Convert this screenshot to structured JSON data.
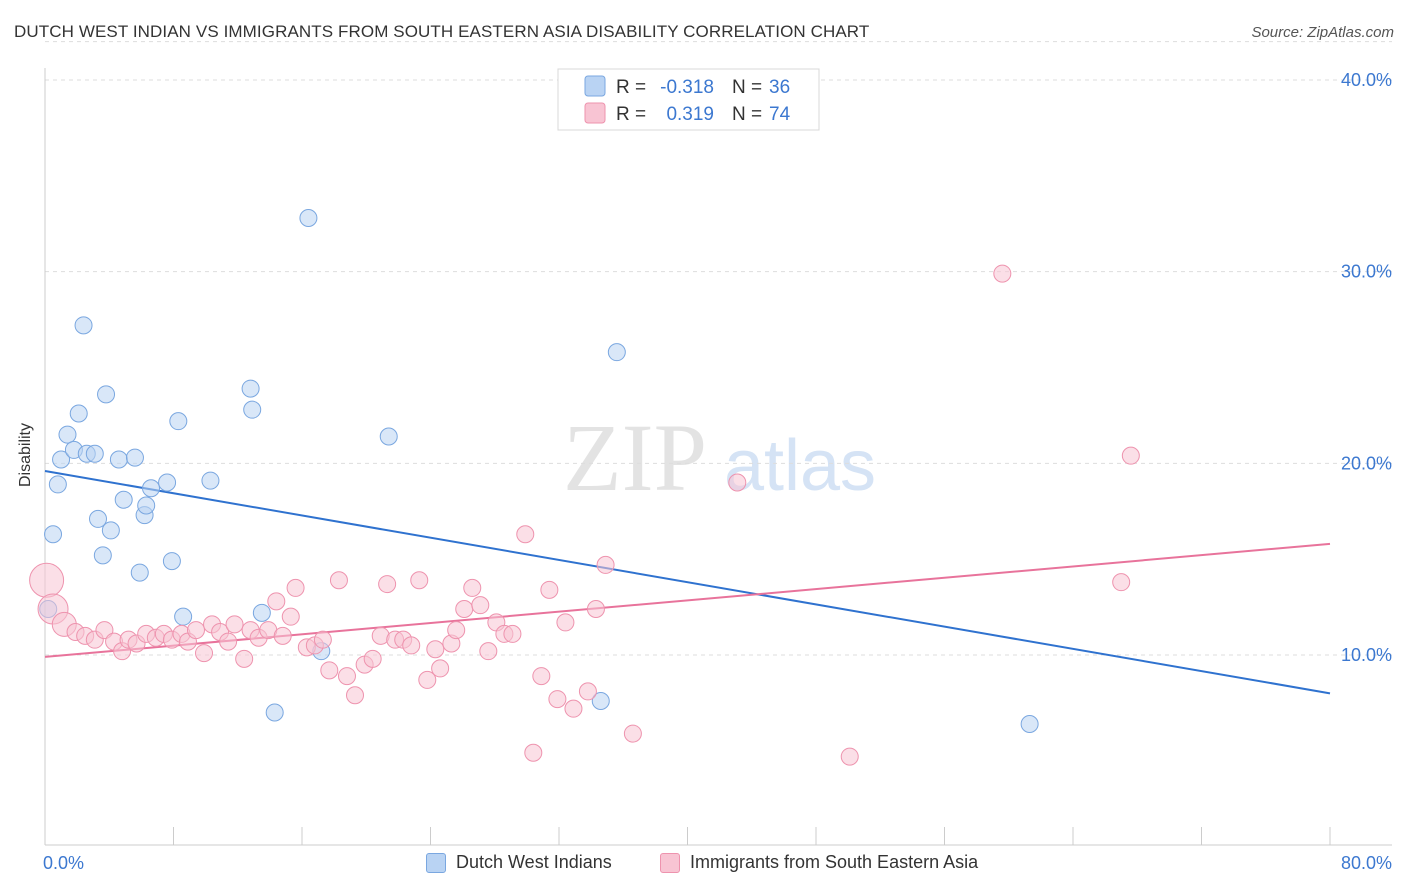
{
  "title": "DUTCH WEST INDIAN VS IMMIGRANTS FROM SOUTH EASTERN ASIA DISABILITY CORRELATION CHART",
  "source": "Source: ZipAtlas.com",
  "watermark": {
    "zip": "ZIP",
    "atlas": "atlas"
  },
  "legend_top": {
    "r_label": "R =",
    "n_label": "N =",
    "rows": [
      {
        "r": "-0.318",
        "n": "36"
      },
      {
        "r": "0.319",
        "n": "74"
      }
    ]
  },
  "colors": {
    "blue_fill": "#b9d3f3",
    "blue_stroke": "#7aa7e0",
    "blue_line": "#2f72cf",
    "pink_fill": "#f8c4d3",
    "pink_stroke": "#ee93ae",
    "pink_line": "#e8739b",
    "value_text": "#3c78d0",
    "grid": "#dddddd"
  },
  "chart_data": {
    "type": "scatter",
    "title": "DUTCH WEST INDIAN VS IMMIGRANTS FROM SOUTH EASTERN ASIA DISABILITY CORRELATION CHART",
    "xlabel": "",
    "ylabel": "Disability",
    "xlim": [
      0,
      80
    ],
    "ylim": [
      0,
      42
    ],
    "x_tick_labels": [
      "0.0%",
      "80.0%"
    ],
    "y_tick_labels": [
      "10.0%",
      "20.0%",
      "30.0%",
      "40.0%"
    ],
    "y_ticks": [
      10,
      20,
      30,
      40
    ],
    "grid": true,
    "legend_position": "bottom",
    "series": [
      {
        "name": "Dutch West Indians",
        "color": "#7aa7e0",
        "r": -0.318,
        "n": 36,
        "trend": {
          "x": [
            0,
            80
          ],
          "y": [
            19.6,
            8.0
          ]
        },
        "points": [
          [
            0.2,
            12.4
          ],
          [
            0.5,
            16.3
          ],
          [
            0.8,
            18.9
          ],
          [
            1.0,
            20.2
          ],
          [
            1.4,
            21.5
          ],
          [
            1.8,
            20.7
          ],
          [
            2.1,
            22.6
          ],
          [
            2.4,
            27.2
          ],
          [
            2.6,
            20.5
          ],
          [
            3.1,
            20.5
          ],
          [
            3.3,
            17.1
          ],
          [
            3.6,
            15.2
          ],
          [
            3.8,
            23.6
          ],
          [
            4.1,
            16.5
          ],
          [
            4.6,
            20.2
          ],
          [
            4.9,
            18.1
          ],
          [
            5.6,
            20.3
          ],
          [
            5.9,
            14.3
          ],
          [
            6.2,
            17.3
          ],
          [
            6.3,
            17.8
          ],
          [
            6.6,
            18.7
          ],
          [
            7.6,
            19.0
          ],
          [
            7.9,
            14.9
          ],
          [
            8.3,
            22.2
          ],
          [
            8.6,
            12.0
          ],
          [
            10.3,
            19.1
          ],
          [
            12.8,
            23.9
          ],
          [
            12.9,
            22.8
          ],
          [
            13.5,
            12.2
          ],
          [
            14.3,
            7.0
          ],
          [
            16.4,
            32.8
          ],
          [
            17.2,
            10.2
          ],
          [
            21.4,
            21.4
          ],
          [
            34.6,
            7.6
          ],
          [
            35.6,
            25.8
          ],
          [
            61.3,
            6.4
          ]
        ]
      },
      {
        "name": "Immigrants from South Eastern Asia",
        "color": "#ee93ae",
        "r": 0.319,
        "n": 74,
        "trend": {
          "x": [
            0,
            80
          ],
          "y": [
            9.9,
            15.8
          ]
        },
        "points": [
          [
            0.1,
            13.9
          ],
          [
            0.5,
            12.4
          ],
          [
            1.2,
            11.6
          ],
          [
            1.9,
            11.2
          ],
          [
            2.5,
            11.0
          ],
          [
            3.1,
            10.8
          ],
          [
            3.7,
            11.3
          ],
          [
            4.3,
            10.7
          ],
          [
            4.8,
            10.2
          ],
          [
            5.2,
            10.8
          ],
          [
            5.7,
            10.6
          ],
          [
            6.3,
            11.1
          ],
          [
            6.9,
            10.9
          ],
          [
            7.4,
            11.1
          ],
          [
            7.9,
            10.8
          ],
          [
            8.5,
            11.1
          ],
          [
            8.9,
            10.7
          ],
          [
            9.4,
            11.3
          ],
          [
            9.9,
            10.1
          ],
          [
            10.4,
            11.6
          ],
          [
            10.9,
            11.2
          ],
          [
            11.4,
            10.7
          ],
          [
            11.8,
            11.6
          ],
          [
            12.4,
            9.8
          ],
          [
            12.8,
            11.3
          ],
          [
            13.3,
            10.9
          ],
          [
            13.9,
            11.3
          ],
          [
            14.4,
            12.8
          ],
          [
            14.8,
            11.0
          ],
          [
            15.3,
            12.0
          ],
          [
            15.6,
            13.5
          ],
          [
            16.3,
            10.4
          ],
          [
            16.8,
            10.5
          ],
          [
            17.3,
            10.8
          ],
          [
            17.7,
            9.2
          ],
          [
            18.3,
            13.9
          ],
          [
            18.8,
            8.9
          ],
          [
            19.3,
            7.9
          ],
          [
            19.9,
            9.5
          ],
          [
            20.4,
            9.8
          ],
          [
            20.9,
            11.0
          ],
          [
            21.3,
            13.7
          ],
          [
            21.8,
            10.8
          ],
          [
            22.3,
            10.8
          ],
          [
            22.8,
            10.5
          ],
          [
            23.3,
            13.9
          ],
          [
            23.8,
            8.7
          ],
          [
            24.3,
            10.3
          ],
          [
            24.6,
            9.3
          ],
          [
            25.3,
            10.6
          ],
          [
            25.6,
            11.3
          ],
          [
            26.1,
            12.4
          ],
          [
            26.6,
            13.5
          ],
          [
            27.1,
            12.6
          ],
          [
            27.6,
            10.2
          ],
          [
            28.1,
            11.7
          ],
          [
            28.6,
            11.1
          ],
          [
            29.1,
            11.1
          ],
          [
            29.9,
            16.3
          ],
          [
            30.4,
            4.9
          ],
          [
            30.9,
            8.9
          ],
          [
            31.4,
            13.4
          ],
          [
            31.9,
            7.7
          ],
          [
            32.4,
            11.7
          ],
          [
            32.9,
            7.2
          ],
          [
            33.8,
            8.1
          ],
          [
            34.3,
            12.4
          ],
          [
            34.9,
            14.7
          ],
          [
            36.6,
            5.9
          ],
          [
            43.1,
            19.0
          ],
          [
            50.1,
            4.7
          ],
          [
            59.6,
            29.9
          ],
          [
            67.0,
            13.8
          ],
          [
            67.6,
            20.4
          ]
        ]
      }
    ]
  }
}
